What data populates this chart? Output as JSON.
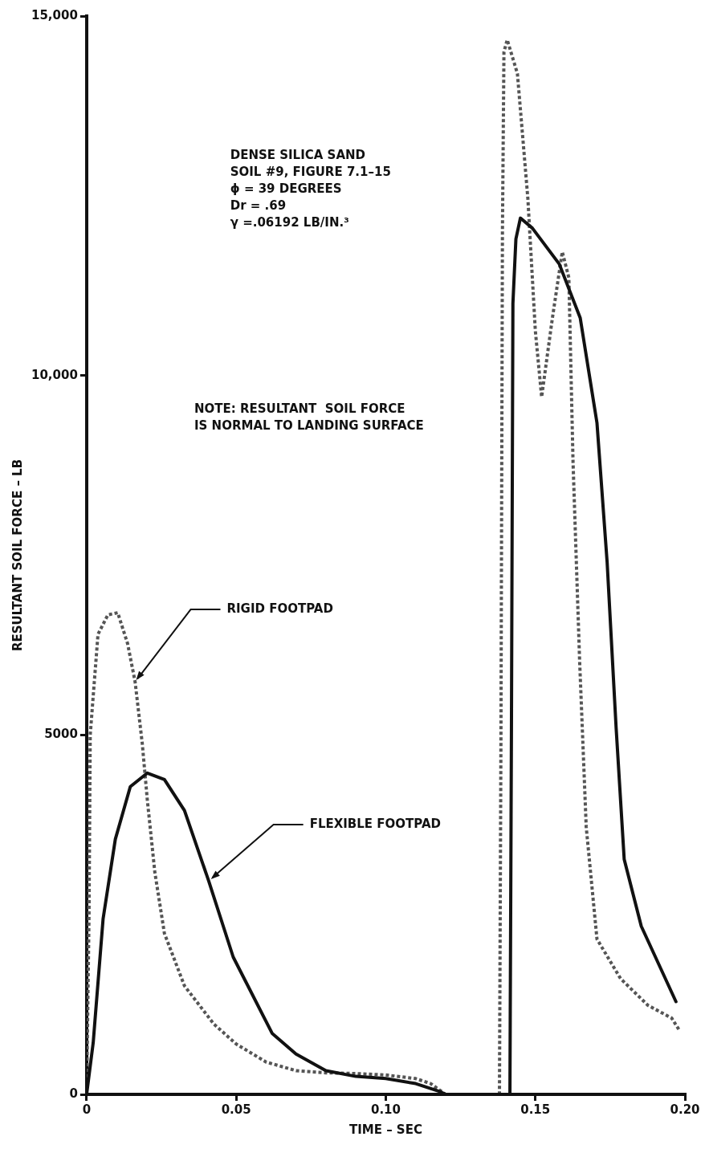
{
  "chart_data": {
    "type": "line",
    "xlabel": "TIME – SEC",
    "ylabel": "RESULTANT SOIL FORCE – LB",
    "xlim": [
      0,
      0.2
    ],
    "xticks": [
      0,
      {
        "value": 0.05,
        "label": "0.05"
      },
      {
        "value": 0.1,
        "label": "0.10"
      },
      {
        "value": 0.15,
        "label": "0.15"
      },
      {
        "value": 0.2,
        "label": "0.20"
      }
    ],
    "ylim": [
      0,
      15000
    ],
    "yticks": [
      0,
      5000,
      {
        "value": 10000,
        "label": "10,000"
      },
      {
        "value": 15000,
        "label": "15,000"
      }
    ],
    "grid": false,
    "legend": false,
    "marker": "none",
    "series": [
      {
        "color": "#111111",
        "line_style": "solid",
        "x": [
          0,
          0.0022,
          0.0055,
          0.0096,
          0.0146,
          0.0203,
          0.026,
          0.0327,
          0.0408,
          0.049,
          0.062,
          0.07,
          0.08,
          0.09,
          0.1,
          0.11,
          0.118,
          0.12,
          0.1415,
          0.142,
          0.1425,
          0.1435,
          0.145,
          0.149,
          0.158,
          0.165,
          0.1706,
          0.174,
          0.177,
          0.1797,
          0.1854,
          0.197
        ],
        "values": [
          0,
          720,
          2440,
          3550,
          4280,
          4470,
          4380,
          3950,
          2970,
          1910,
          850,
          560,
          330,
          250,
          220,
          150,
          40,
          0,
          0,
          5000,
          11000,
          11900,
          12190,
          12050,
          11550,
          10800,
          9340,
          7400,
          5100,
          3270,
          2340,
          1290
        ]
      },
      {
        "color": "#555555",
        "line_style": "dotted",
        "x": [
          0,
          0.0008,
          0.0012,
          0.0038,
          0.0071,
          0.0104,
          0.0137,
          0.0162,
          0.0186,
          0.0203,
          0.0228,
          0.026,
          0.0327,
          0.0425,
          0.05,
          0.06,
          0.07,
          0.08,
          0.09,
          0.1,
          0.11,
          0.115,
          0.12,
          0.138,
          0.1385,
          0.139,
          0.1395,
          0.1406,
          0.144,
          0.1475,
          0.15,
          0.1521,
          0.1557,
          0.159,
          0.1612,
          0.1626,
          0.1648,
          0.167,
          0.1706,
          0.1785,
          0.1876,
          0.1956,
          0.198
        ],
        "values": [
          0,
          2500,
          5000,
          6400,
          6670,
          6700,
          6270,
          5740,
          4880,
          4090,
          3090,
          2240,
          1510,
          980,
          700,
          450,
          330,
          300,
          290,
          270,
          220,
          150,
          0,
          0,
          5000,
          12000,
          14500,
          14670,
          14200,
          12460,
          10620,
          9700,
          10800,
          11720,
          11360,
          8790,
          6030,
          3720,
          2160,
          1610,
          1240,
          1060,
          900
        ]
      }
    ],
    "annotations": [
      "DENSE SILICA SAND",
      "SOIL #9, FIGURE 7.1–15",
      "ϕ = 39 DEGREES",
      "Dr = .69",
      "γ =.06192 LB/IN.³",
      "NOTE: RESULTANT  SOIL FORCE",
      "IS NORMAL TO LANDING SURFACE",
      {
        "text": "RIGID FOOTPAD",
        "x": 0.016,
        "y": 5740
      },
      {
        "text": "FLEXIBLE FOOTPAD",
        "x": 0.041,
        "y": 2970
      }
    ]
  }
}
